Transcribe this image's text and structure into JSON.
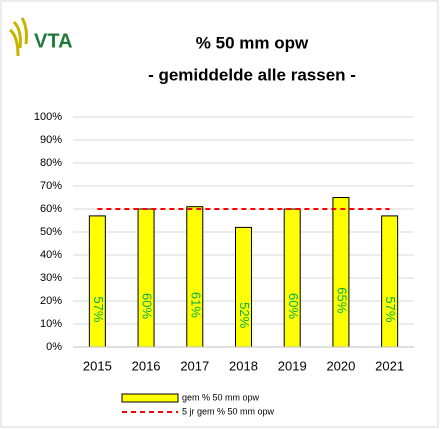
{
  "chart_data": {
    "type": "bar",
    "logo": "VTA",
    "title": "% 50 mm opw",
    "subtitle": "- gemiddelde alle rassen -",
    "categories": [
      "2015",
      "2016",
      "2017",
      "2018",
      "2019",
      "2020",
      "2021"
    ],
    "series": [
      {
        "name": "gem % 50 mm opw",
        "type": "bar",
        "color": "#ffff00",
        "edge": "#000000",
        "label_color": "#00b050",
        "values": [
          57,
          60,
          61,
          52,
          60,
          65,
          57
        ],
        "value_labels": [
          "57%",
          "60%",
          "61%",
          "52%",
          "60%",
          "65%",
          "57%"
        ]
      },
      {
        "name": "5 jr gem % 50 mm opw",
        "type": "line",
        "color": "#ff0000",
        "dashed": true,
        "values": [
          60,
          60,
          60,
          60,
          60,
          60,
          60
        ]
      }
    ],
    "ylim": [
      0,
      100
    ],
    "yticks": [
      {
        "value": 0,
        "label": "0%"
      },
      {
        "value": 10,
        "label": "10%"
      },
      {
        "value": 20,
        "label": "20%"
      },
      {
        "value": 30,
        "label": "30%"
      },
      {
        "value": 40,
        "label": "40%"
      },
      {
        "value": 50,
        "label": "50%"
      },
      {
        "value": 60,
        "label": "60%"
      },
      {
        "value": 70,
        "label": "70%"
      },
      {
        "value": 80,
        "label": "80%"
      },
      {
        "value": 90,
        "label": "90%"
      },
      {
        "value": 100,
        "label": "100%"
      }
    ],
    "grid": true,
    "legend": "bottom"
  }
}
